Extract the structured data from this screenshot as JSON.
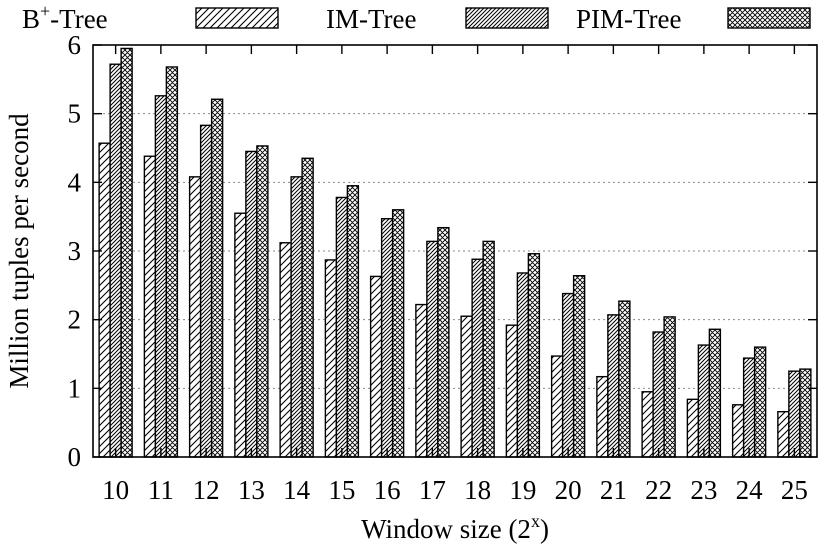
{
  "chart_data": {
    "type": "bar",
    "title": "",
    "xlabel": "Window size (2",
    "xlabel_superscript": "x",
    "xlabel_suffix": ")",
    "ylabel": "Million tuples per second",
    "ylim": [
      0,
      6
    ],
    "yticks": [
      "0",
      "1",
      "2",
      "3",
      "4",
      "5",
      "6"
    ],
    "grid": "horizontal dashed",
    "legend_position": "top",
    "categories": [
      "10",
      "11",
      "12",
      "13",
      "14",
      "15",
      "16",
      "17",
      "18",
      "19",
      "20",
      "21",
      "22",
      "23",
      "24",
      "25"
    ],
    "series": [
      {
        "name": "B+-Tree",
        "label_main": "B",
        "label_sup": "+",
        "label_suffix": "-Tree",
        "pattern": "diagonal-wide",
        "values": [
          4.57,
          4.38,
          4.08,
          3.55,
          3.12,
          2.87,
          2.63,
          2.22,
          2.05,
          1.92,
          1.47,
          1.17,
          0.95,
          0.84,
          0.76,
          0.66
        ]
      },
      {
        "name": "IM-Tree",
        "pattern": "diagonal-dense",
        "values": [
          5.72,
          5.26,
          4.83,
          4.45,
          4.08,
          3.78,
          3.47,
          3.14,
          2.88,
          2.68,
          2.38,
          2.07,
          1.82,
          1.63,
          1.44,
          1.25
        ]
      },
      {
        "name": "PIM-Tree",
        "pattern": "crosshatch",
        "values": [
          5.95,
          5.68,
          5.21,
          4.53,
          4.35,
          3.95,
          3.6,
          3.34,
          3.14,
          2.96,
          2.64,
          2.27,
          2.04,
          1.86,
          1.6,
          1.28
        ]
      }
    ]
  }
}
